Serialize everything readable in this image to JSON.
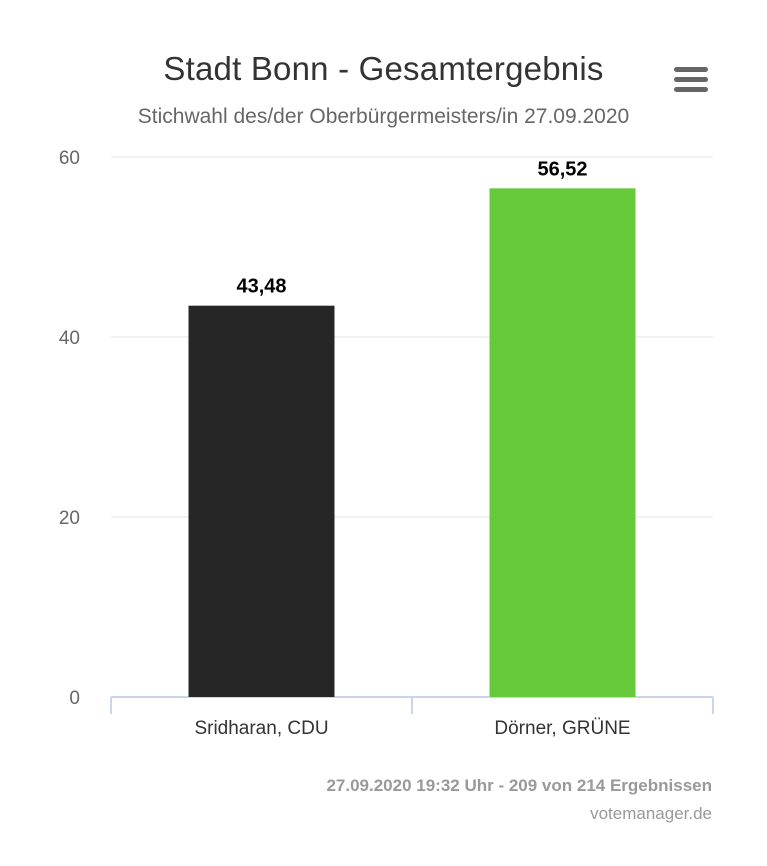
{
  "chart_data": {
    "type": "bar",
    "title": "Stadt Bonn - Gesamtergebnis",
    "subtitle": "Stichwahl des/der Oberbürgermeisters/in 27.09.2020",
    "xlabel": "",
    "ylabel": "",
    "categories": [
      "Sridharan, CDU",
      "Dörner, GRÜNE"
    ],
    "values": [
      43.48,
      56.52
    ],
    "data_labels": [
      "43,48",
      "56,52"
    ],
    "colors": [
      "#262626",
      "#66c93a"
    ],
    "ylim": [
      0,
      60
    ],
    "yticks": [
      0,
      20,
      40,
      60
    ],
    "ytick_labels": [
      "0",
      "20",
      "40",
      "60"
    ],
    "grid": true,
    "legend": "none"
  },
  "footer": {
    "info": "27.09.2020 19:32 Uhr - 209 von 214 Ergebnissen",
    "credit": "votemanager.de"
  },
  "menu": {
    "icon": "hamburger-menu-icon"
  }
}
